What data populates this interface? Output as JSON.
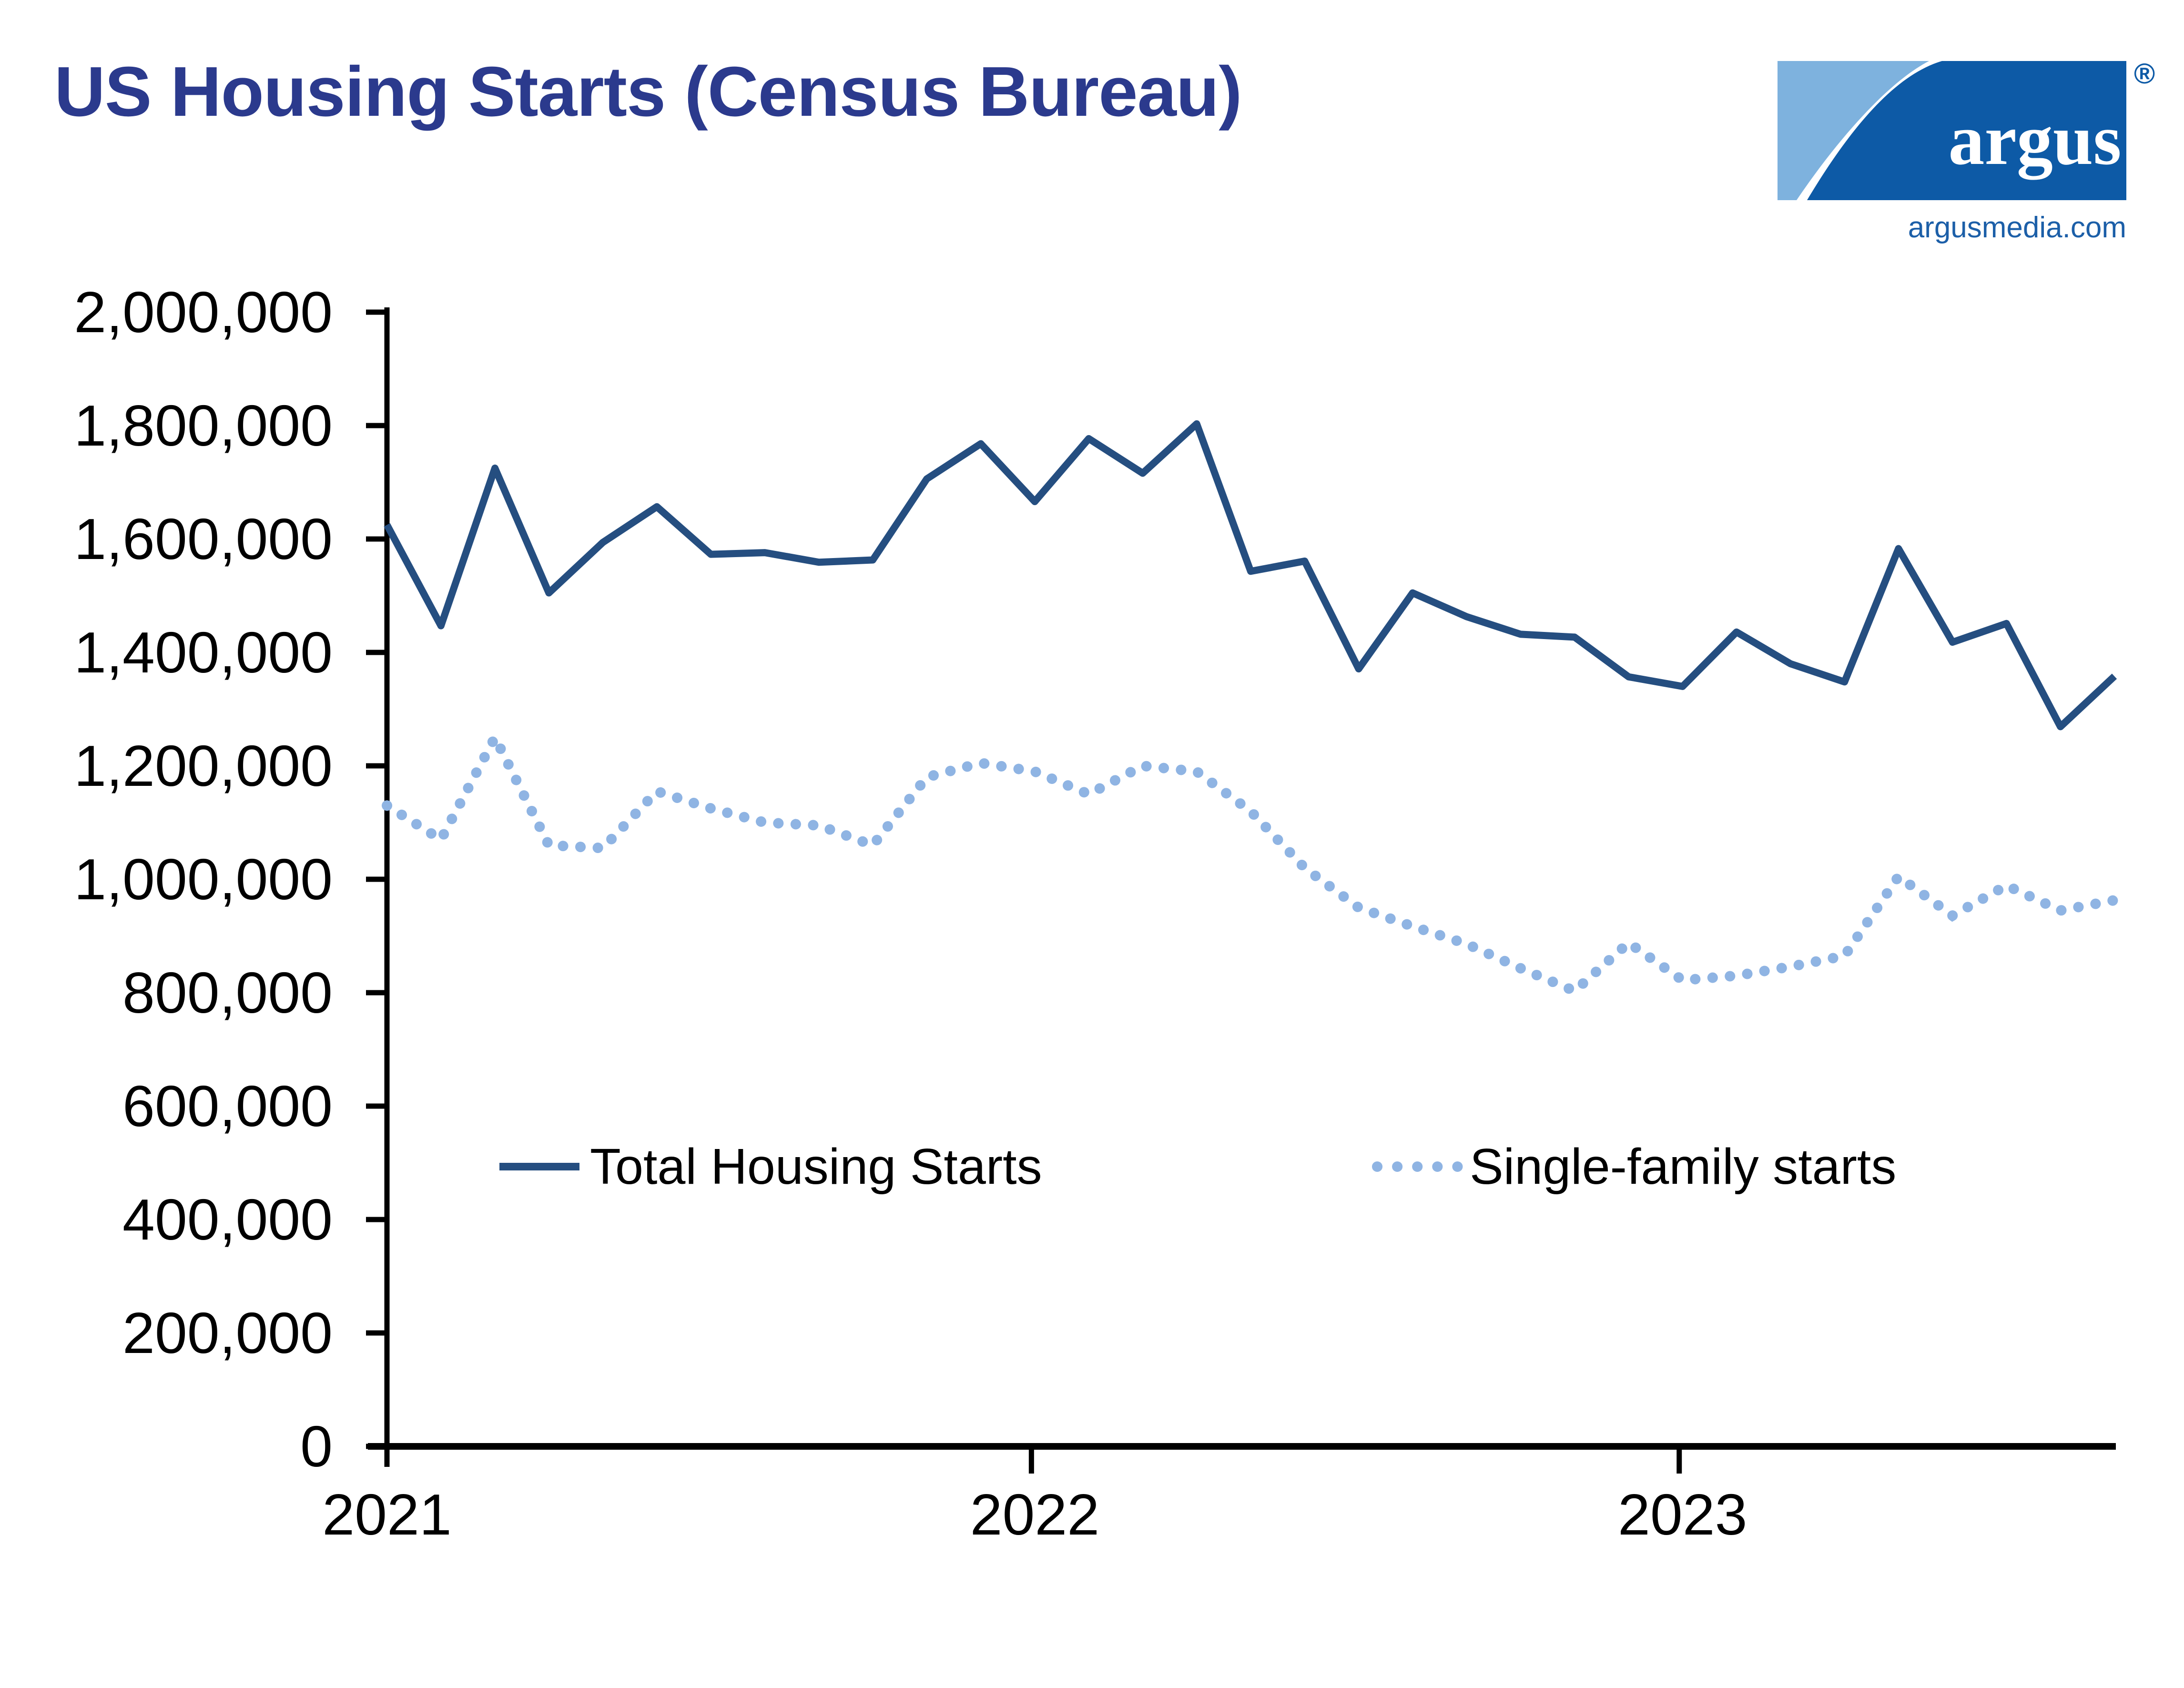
{
  "title": "US Housing Starts (Census Bureau)",
  "logo": {
    "brand": "argus",
    "registered": "®",
    "website": "argusmedia.com"
  },
  "colors": {
    "title_text": "#2B3A8D",
    "total_line": "#254E80",
    "single_family_line": "#8FB4E3",
    "logo_dark_blue": "#0D5AA6",
    "logo_light_blue": "#7EB2DE",
    "website_text": "#1C5FA8",
    "axis": "#000000"
  },
  "legend": [
    {
      "label": "Total Housing Starts",
      "style": "solid"
    },
    {
      "label": "Single-family starts",
      "style": "dotted"
    }
  ],
  "chart_data": {
    "type": "line",
    "title": "US Housing Starts (Census Bureau)",
    "xlabel": "",
    "ylabel": "",
    "grid": false,
    "legend_position": "inside-bottom",
    "ylim": [
      0,
      2000000
    ],
    "y_ticks": [
      0,
      200000,
      400000,
      600000,
      800000,
      1000000,
      1200000,
      1400000,
      1600000,
      1800000,
      2000000
    ],
    "x_tick_labels": [
      "2021",
      "2022",
      "2023"
    ],
    "x_tick_month_index": [
      0,
      12,
      24
    ],
    "x": [
      "Jan 2021",
      "Feb 2021",
      "Mar 2021",
      "Apr 2021",
      "May 2021",
      "Jun 2021",
      "Jul 2021",
      "Aug 2021",
      "Sep 2021",
      "Oct 2021",
      "Nov 2021",
      "Dec 2021",
      "Jan 2022",
      "Feb 2022",
      "Mar 2022",
      "Apr 2022",
      "May 2022",
      "Jun 2022",
      "Jul 2022",
      "Aug 2022",
      "Sep 2022",
      "Oct 2022",
      "Nov 2022",
      "Dec 2022",
      "Jan 2023",
      "Feb 2023",
      "Mar 2023",
      "Apr 2023",
      "May 2023",
      "Jun 2023",
      "Jul 2023",
      "Aug 2023",
      "Sep 2023"
    ],
    "series": [
      {
        "name": "Total Housing Starts",
        "style": "solid",
        "color": "#254E80",
        "values": [
          1625000,
          1447000,
          1725000,
          1505000,
          1594000,
          1657000,
          1573000,
          1576000,
          1559000,
          1563000,
          1706000,
          1768000,
          1666000,
          1777000,
          1716000,
          1803000,
          1543000,
          1561000,
          1371000,
          1505000,
          1463000,
          1432000,
          1427000,
          1357000,
          1340000,
          1436000,
          1380000,
          1348000,
          1583000,
          1418000,
          1451000,
          1269000,
          1358000
        ]
      },
      {
        "name": "Single-family starts",
        "style": "dotted",
        "color": "#8FB4E3",
        "values": [
          1130000,
          1070000,
          1250000,
          1060000,
          1055000,
          1155000,
          1125000,
          1100000,
          1095000,
          1060000,
          1180000,
          1205000,
          1190000,
          1150000,
          1200000,
          1190000,
          1120000,
          1020000,
          950000,
          917000,
          886000,
          843000,
          803000,
          888000,
          822000,
          830000,
          846000,
          865000,
          1005000,
          936000,
          989000,
          945000,
          963000
        ]
      }
    ]
  }
}
